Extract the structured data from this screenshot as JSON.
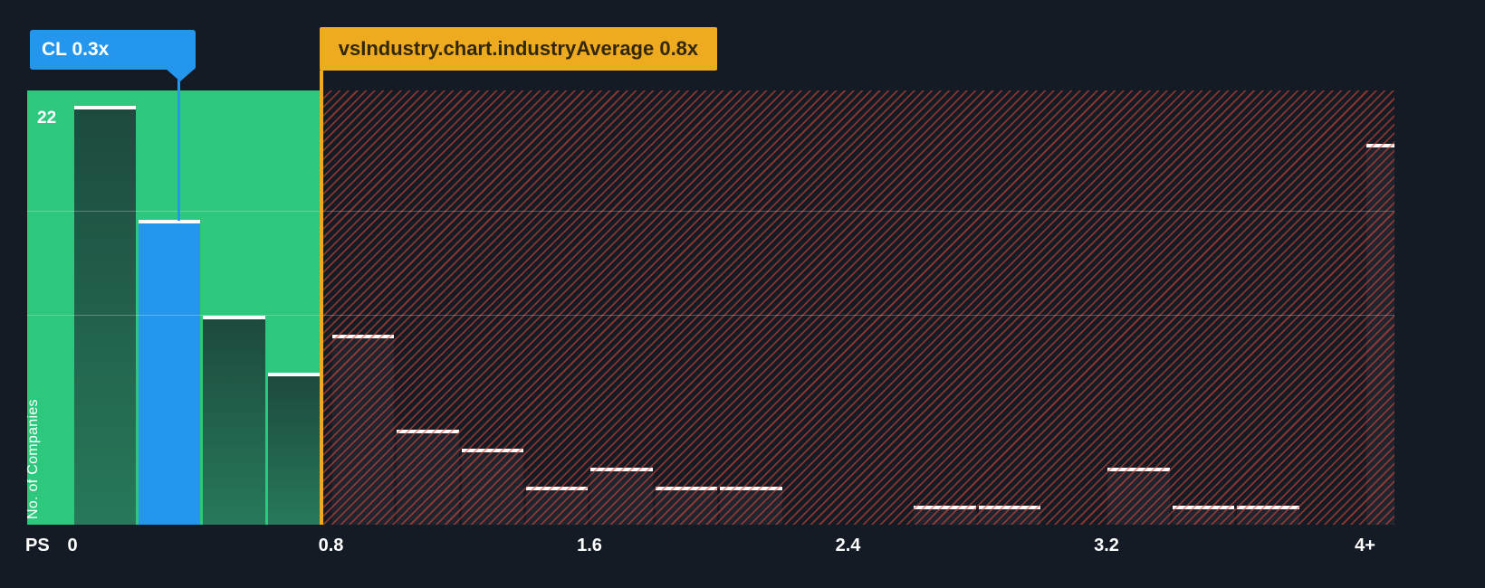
{
  "colors": {
    "background": "#151b24",
    "region_green": "#2dc87e",
    "bar_green_top": "#1d4a3e",
    "bar_green_bottom": "#27795a",
    "highlight_blue": "#2496ed",
    "marker_yellow": "#eeab20",
    "marker_text": "#33270a",
    "hatch_red": "#e24a38",
    "bar_dark": "#20242f",
    "text_white": "#ffffff"
  },
  "tooltip": {
    "label": "CL 0.3x"
  },
  "industry_marker": {
    "label": "vsIndustry.chart.industryAverage 0.8x"
  },
  "y_axis": {
    "max_tick": "22",
    "title": "No. of Companies"
  },
  "x_axis": {
    "name": "PS"
  },
  "chart_data": {
    "type": "bar",
    "xlabel": "PS",
    "ylabel": "No. of Companies",
    "ylim": [
      0,
      23
    ],
    "y_max_tick": 22,
    "bin_width": 0.2,
    "bin_starts": [
      0,
      0.2,
      0.4,
      0.6,
      0.8,
      1.0,
      1.2,
      1.4,
      1.6,
      1.8,
      2.0,
      2.2,
      2.4,
      2.6,
      2.8,
      3.0,
      3.2,
      3.4,
      3.6,
      3.8,
      4.0
    ],
    "values": [
      22,
      16,
      11,
      8,
      10,
      5,
      4,
      2,
      3,
      2,
      2,
      0,
      0,
      1,
      1,
      0,
      3,
      1,
      1,
      0,
      20
    ],
    "ticks": [
      {
        "value": 0,
        "label": "0"
      },
      {
        "value": 0.8,
        "label": "0.8"
      },
      {
        "value": 1.6,
        "label": "1.6"
      },
      {
        "value": 2.4,
        "label": "2.4"
      },
      {
        "value": 3.2,
        "label": "3.2"
      },
      {
        "value": 4.0,
        "label": "4+"
      }
    ],
    "highlighted_bin": {
      "start": 0.2,
      "label": "CL 0.3x"
    },
    "industry_average": {
      "position": 0.77,
      "display": "0.8x",
      "label": "vsIndustry.chart.industryAverage 0.8x"
    },
    "regions": {
      "below_average": "green",
      "above_average": "red-hatch"
    },
    "grid": "on",
    "legend": "none"
  }
}
